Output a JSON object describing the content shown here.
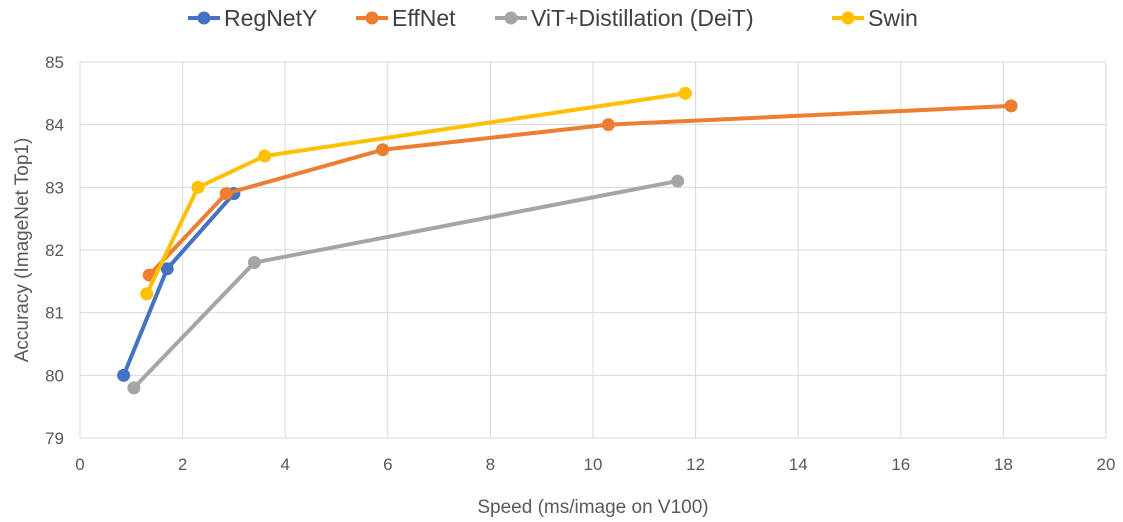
{
  "chart_data": {
    "type": "line",
    "title": "",
    "xlabel": "Speed (ms/image on V100)",
    "ylabel": "Accuracy (ImageNet Top1)",
    "xlim": [
      0,
      20
    ],
    "ylim": [
      79,
      85
    ],
    "xticks": [
      "0",
      "2",
      "4",
      "6",
      "8",
      "10",
      "12",
      "14",
      "16",
      "18",
      "20"
    ],
    "yticks": [
      "79",
      "80",
      "81",
      "82",
      "83",
      "84",
      "85"
    ],
    "grid": true,
    "legend_position": "top",
    "series": [
      {
        "name": "RegNetY",
        "color": "#4472c4",
        "points": [
          [
            0.85,
            80.0
          ],
          [
            1.7,
            81.7
          ],
          [
            3.0,
            82.9
          ]
        ]
      },
      {
        "name": "EffNet",
        "color": "#ed7d31",
        "points": [
          [
            1.35,
            81.6
          ],
          [
            2.85,
            82.9
          ],
          [
            5.9,
            83.6
          ],
          [
            10.3,
            84.0
          ],
          [
            18.15,
            84.3
          ]
        ]
      },
      {
        "name": "ViT+Distillation (DeiT)",
        "color": "#a5a5a5",
        "points": [
          [
            1.05,
            79.8
          ],
          [
            3.4,
            81.8
          ],
          [
            11.65,
            83.1
          ]
        ]
      },
      {
        "name": "Swin",
        "color": "#ffc000",
        "points": [
          [
            1.3,
            81.3
          ],
          [
            2.3,
            83.0
          ],
          [
            3.6,
            83.5
          ],
          [
            11.8,
            84.5
          ]
        ]
      }
    ]
  }
}
